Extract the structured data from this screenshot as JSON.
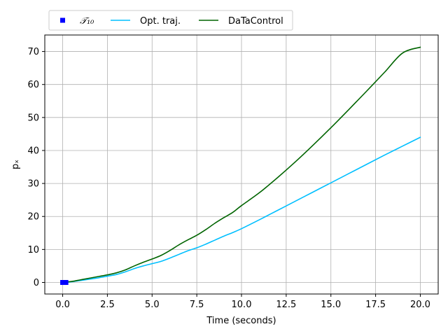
{
  "chart_data": {
    "type": "line",
    "title": "",
    "xlabel": "Time (seconds)",
    "ylabel": "pₓ",
    "xlim": [
      -1.0,
      21.0
    ],
    "ylim": [
      -3.5,
      75.0
    ],
    "xticks": [
      0.0,
      2.5,
      5.0,
      7.5,
      10.0,
      12.5,
      15.0,
      17.5,
      20.0
    ],
    "xtick_labels": [
      "0.0",
      "2.5",
      "5.0",
      "7.5",
      "10.0",
      "12.5",
      "15.0",
      "17.5",
      "20.0"
    ],
    "yticks": [
      0,
      10,
      20,
      30,
      40,
      50,
      60,
      70
    ],
    "ytick_labels": [
      "0",
      "10",
      "20",
      "30",
      "40",
      "50",
      "60",
      "70"
    ],
    "grid": true,
    "legend": {
      "placement": "top-left-outside",
      "columns": 3
    },
    "series": [
      {
        "name": "𝒯₁₀",
        "type": "scatter",
        "marker": "square",
        "color": "#0000ff",
        "x": [
          0.0,
          0.02,
          0.04,
          0.06,
          0.08,
          0.1,
          0.12,
          0.14,
          0.16,
          0.18
        ],
        "y": [
          0.0,
          0.0,
          0.0,
          0.0,
          0.0,
          0.0,
          0.0,
          0.0,
          0.0,
          0.0
        ]
      },
      {
        "name": "Opt. traj.",
        "type": "line",
        "color": "#00bfff",
        "x": [
          0.0,
          0.5,
          1.0,
          1.5,
          2.0,
          2.5,
          3.0,
          3.5,
          4.0,
          4.5,
          5.0,
          5.5,
          6.0,
          6.5,
          7.0,
          7.5,
          8.0,
          8.5,
          9.0,
          9.5,
          10.0,
          11.0,
          12.0,
          13.0,
          14.0,
          15.0,
          16.0,
          17.0,
          18.0,
          19.0,
          20.0
        ],
        "y": [
          0.0,
          0.2,
          0.6,
          1.0,
          1.4,
          1.9,
          2.4,
          3.2,
          4.2,
          5.0,
          5.7,
          6.4,
          7.4,
          8.5,
          9.6,
          10.5,
          11.6,
          12.8,
          14.0,
          15.1,
          16.3,
          19.0,
          21.8,
          24.6,
          27.4,
          30.2,
          33.0,
          35.8,
          38.6,
          41.3,
          44.0
        ]
      },
      {
        "name": "DaTaControl",
        "type": "line",
        "color": "#006400",
        "x": [
          0.0,
          0.5,
          1.0,
          1.5,
          2.0,
          2.5,
          3.0,
          3.5,
          4.0,
          4.5,
          5.0,
          5.5,
          6.0,
          6.5,
          7.0,
          7.5,
          8.0,
          8.5,
          9.0,
          9.5,
          10.0,
          11.0,
          12.0,
          13.0,
          14.0,
          15.0,
          16.0,
          17.0,
          18.0,
          19.0,
          20.0
        ],
        "y": [
          0.0,
          0.3,
          0.8,
          1.3,
          1.8,
          2.3,
          2.9,
          3.8,
          5.0,
          6.1,
          7.1,
          8.2,
          9.7,
          11.4,
          12.9,
          14.3,
          16.0,
          17.9,
          19.6,
          21.2,
          23.3,
          27.2,
          31.7,
          36.5,
          41.6,
          46.9,
          52.4,
          58.0,
          63.7,
          69.5,
          71.3
        ]
      }
    ]
  }
}
